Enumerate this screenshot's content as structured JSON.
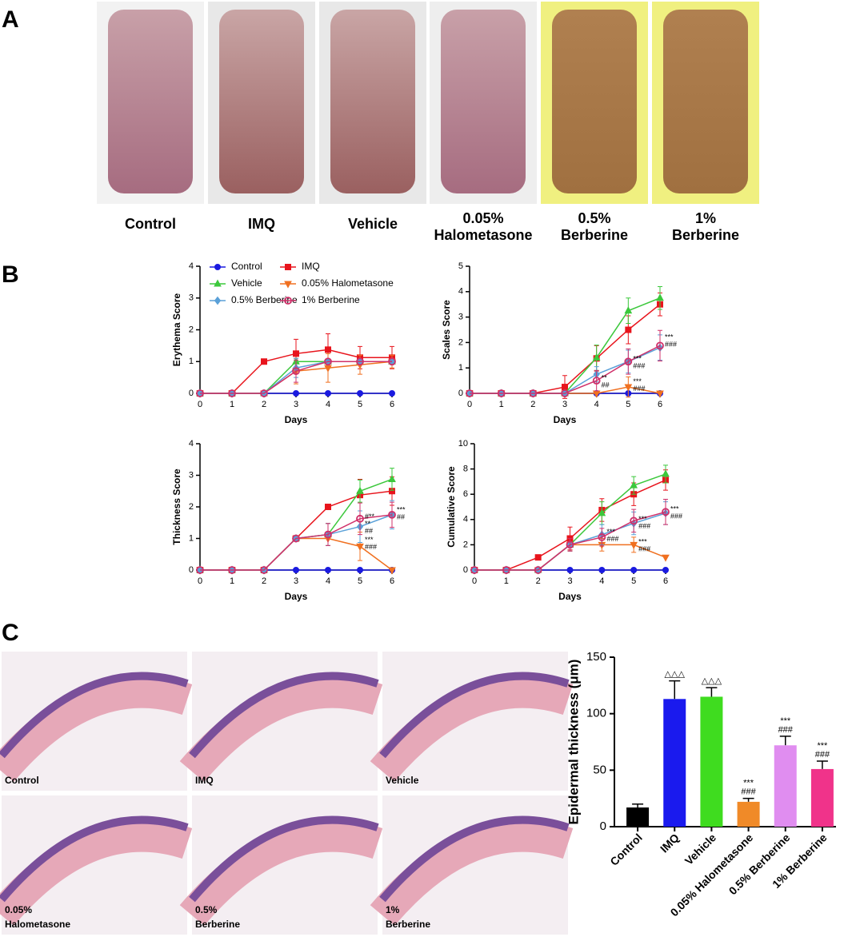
{
  "panel_labels": [
    "A",
    "B",
    "C"
  ],
  "photo_labels": [
    [
      "Control"
    ],
    [
      "IMQ"
    ],
    [
      "Vehicle"
    ],
    [
      "0.05%",
      "Halometasone"
    ],
    [
      "0.5%",
      "Berberine"
    ],
    [
      "1%",
      "Berberine"
    ]
  ],
  "histology_labels": [
    [
      "Control"
    ],
    [
      "IMQ"
    ],
    [
      "Vehicle"
    ],
    [
      "0.05%",
      "Halometasone"
    ],
    [
      "0.5%",
      "Berberine"
    ],
    [
      "1%",
      "Berberine"
    ]
  ],
  "chart_data": [
    {
      "type": "line",
      "ylabel": "Erythema Score",
      "xlabel": "Days",
      "legend": true,
      "x": [
        0,
        1,
        2,
        3,
        4,
        5,
        6
      ],
      "xlim": [
        0,
        6
      ],
      "xticks": [
        0,
        1,
        2,
        3,
        4,
        5,
        6
      ],
      "ylim": [
        0,
        4
      ],
      "yticks": [
        0,
        1,
        2,
        3,
        4
      ],
      "series": [
        {
          "name": "Control",
          "color": "#1a1ae0",
          "marker": "circle",
          "values": [
            0,
            0,
            0,
            0,
            0,
            0,
            0
          ],
          "errors": [
            0,
            0,
            0,
            0,
            0,
            0,
            0
          ]
        },
        {
          "name": "IMQ",
          "color": "#e8141c",
          "marker": "square",
          "values": [
            0,
            0,
            1,
            1.25,
            1.375,
            1.125,
            1.125
          ],
          "errors": [
            0,
            0,
            0,
            0.45,
            0.5,
            0.35,
            0.35
          ]
        },
        {
          "name": "Vehicle",
          "color": "#3cc83c",
          "marker": "triangle",
          "values": [
            0,
            0,
            0,
            1,
            1,
            1,
            1
          ],
          "errors": [
            0,
            0,
            0,
            0,
            0,
            0,
            0
          ]
        },
        {
          "name": "0.05% Halometasone",
          "color": "#f07020",
          "marker": "triangle-down",
          "values": [
            0,
            0,
            0,
            0.7,
            0.8,
            0.9,
            1
          ],
          "errors": [
            0,
            0,
            0,
            0.4,
            0.45,
            0.3,
            0.2
          ]
        },
        {
          "name": "0.5% Berberine",
          "color": "#5aa0d8",
          "marker": "diamond",
          "values": [
            0,
            0,
            0,
            0.8,
            1,
            1,
            1
          ],
          "errors": [
            0,
            0,
            0,
            0.3,
            0,
            0,
            0
          ]
        },
        {
          "name": "1% Berberine",
          "color": "#d0306a",
          "marker": "open-circle",
          "values": [
            0,
            0,
            0,
            0.7,
            1,
            1,
            1
          ],
          "errors": [
            0,
            0,
            0,
            0.35,
            0,
            0,
            0
          ]
        }
      ],
      "annotations": []
    },
    {
      "type": "line",
      "ylabel": "Scales Score",
      "xlabel": "Days",
      "x": [
        0,
        1,
        2,
        3,
        4,
        5,
        6
      ],
      "xlim": [
        0,
        6
      ],
      "xticks": [
        0,
        1,
        2,
        3,
        4,
        5,
        6
      ],
      "ylim": [
        0,
        5
      ],
      "yticks": [
        0,
        1,
        2,
        3,
        4,
        5
      ],
      "series": [
        {
          "color": "#1a1ae0",
          "marker": "circle",
          "values": [
            0,
            0,
            0,
            0,
            0,
            0,
            0
          ],
          "errors": [
            0,
            0,
            0,
            0,
            0,
            0,
            0
          ]
        },
        {
          "color": "#e8141c",
          "marker": "square",
          "values": [
            0,
            0,
            0,
            0.25,
            1.375,
            2.5,
            3.5
          ],
          "errors": [
            0,
            0,
            0,
            0.45,
            0.5,
            0.55,
            0.45
          ]
        },
        {
          "color": "#3cc83c",
          "marker": "triangle",
          "values": [
            0,
            0,
            0,
            0,
            1.4,
            3.25,
            3.75
          ],
          "errors": [
            0,
            0,
            0,
            0,
            0.5,
            0.5,
            0.45
          ]
        },
        {
          "color": "#f07020",
          "marker": "triangle-down",
          "values": [
            0,
            0,
            0,
            0,
            0,
            0.25,
            0
          ],
          "errors": [
            0,
            0,
            0,
            0,
            0,
            0.4,
            0
          ]
        },
        {
          "color": "#5aa0d8",
          "marker": "diamond",
          "values": [
            0,
            0,
            0,
            0,
            0.75,
            1.25,
            1.8
          ],
          "errors": [
            0,
            0,
            0,
            0,
            0.3,
            0.45,
            0.5
          ]
        },
        {
          "color": "#d0306a",
          "marker": "open-circle",
          "values": [
            0,
            0,
            0,
            0,
            0.5,
            1.25,
            1.875
          ],
          "errors": [
            0,
            0,
            0,
            0,
            0.4,
            0.5,
            0.6
          ]
        }
      ],
      "annotations": [
        {
          "x": 4,
          "y": 0.6,
          "text": [
            "**",
            "##"
          ]
        },
        {
          "x": 5,
          "y": 1.35,
          "text": [
            "***",
            "###"
          ]
        },
        {
          "x": 5,
          "y": 0.45,
          "text": [
            "***",
            "###"
          ]
        },
        {
          "x": 6,
          "y": 2.2,
          "text": [
            "***",
            "###"
          ]
        }
      ]
    },
    {
      "type": "line",
      "ylabel": "Thickness Score",
      "xlabel": "Days",
      "x": [
        0,
        1,
        2,
        3,
        4,
        5,
        6
      ],
      "xlim": [
        0,
        6
      ],
      "xticks": [
        0,
        1,
        2,
        3,
        4,
        5,
        6
      ],
      "ylim": [
        0,
        4
      ],
      "yticks": [
        0,
        1,
        2,
        3,
        4
      ],
      "series": [
        {
          "color": "#1a1ae0",
          "marker": "circle",
          "values": [
            0,
            0,
            0,
            0,
            0,
            0,
            0
          ],
          "errors": [
            0,
            0,
            0,
            0,
            0,
            0,
            0
          ]
        },
        {
          "color": "#e8141c",
          "marker": "square",
          "values": [
            0,
            0,
            0,
            1,
            2,
            2.375,
            2.5
          ],
          "errors": [
            0,
            0,
            0,
            0,
            0,
            0.5,
            0.45
          ]
        },
        {
          "color": "#3cc83c",
          "marker": "triangle",
          "values": [
            0,
            0,
            0,
            1,
            1.125,
            2.5,
            2.875
          ],
          "errors": [
            0,
            0,
            0,
            0,
            0.35,
            0.35,
            0.35
          ]
        },
        {
          "color": "#f07020",
          "marker": "triangle-down",
          "values": [
            0,
            0,
            0,
            1,
            1,
            0.75,
            0
          ],
          "errors": [
            0,
            0,
            0,
            0,
            0,
            0.45,
            0
          ]
        },
        {
          "color": "#5aa0d8",
          "marker": "diamond",
          "values": [
            0,
            0,
            0,
            1,
            1.125,
            1.375,
            1.75
          ],
          "errors": [
            0,
            0,
            0,
            0,
            0.35,
            0.5,
            0.45
          ]
        },
        {
          "color": "#d0306a",
          "marker": "open-circle",
          "values": [
            0,
            0,
            0,
            1,
            1.125,
            1.625,
            1.75
          ],
          "errors": [
            0,
            0,
            0,
            0,
            0.35,
            0.5,
            0.4
          ]
        }
      ],
      "annotations": [
        {
          "x": 5,
          "y": 1.68,
          "text": [
            "#**"
          ]
        },
        {
          "x": 5,
          "y": 1.45,
          "text": [
            "**",
            "##"
          ]
        },
        {
          "x": 5,
          "y": 0.95,
          "text": [
            "***",
            "###"
          ]
        },
        {
          "x": 6,
          "y": 1.9,
          "text": [
            "***",
            "##"
          ]
        }
      ]
    },
    {
      "type": "line",
      "ylabel": "Cumulative Score",
      "xlabel": "Days",
      "x": [
        0,
        1,
        2,
        3,
        4,
        5,
        6
      ],
      "xlim": [
        0,
        6
      ],
      "xticks": [
        0,
        1,
        2,
        3,
        4,
        5,
        6
      ],
      "ylim": [
        0,
        10
      ],
      "yticks": [
        0,
        2,
        4,
        6,
        8,
        10
      ],
      "series": [
        {
          "color": "#1a1ae0",
          "marker": "circle",
          "values": [
            0,
            0,
            0,
            0,
            0,
            0,
            0
          ],
          "errors": [
            0,
            0,
            0,
            0,
            0,
            0,
            0
          ]
        },
        {
          "color": "#e8141c",
          "marker": "square",
          "values": [
            0,
            0,
            1,
            2.5,
            4.75,
            6,
            7.125
          ],
          "errors": [
            0,
            0,
            0,
            0.9,
            0.9,
            0.9,
            0.8
          ]
        },
        {
          "color": "#3cc83c",
          "marker": "triangle",
          "values": [
            0,
            0,
            0,
            2,
            4.5,
            6.7,
            7.6
          ],
          "errors": [
            0,
            0,
            0,
            0.5,
            0.9,
            0.7,
            0.7
          ]
        },
        {
          "color": "#f07020",
          "marker": "triangle-down",
          "values": [
            0,
            0,
            0,
            2,
            2,
            2,
            1
          ],
          "errors": [
            0,
            0,
            0,
            0.5,
            0.5,
            0.6,
            0
          ]
        },
        {
          "color": "#5aa0d8",
          "marker": "diamond",
          "values": [
            0,
            0,
            0,
            2,
            2.8,
            3.7,
            4.5
          ],
          "errors": [
            0,
            0,
            0,
            0.5,
            0.8,
            0.9,
            0.9
          ]
        },
        {
          "color": "#d0306a",
          "marker": "open-circle",
          "values": [
            0,
            0,
            0,
            2,
            2.6,
            3.9,
            4.6
          ],
          "errors": [
            0,
            0,
            0,
            0.5,
            0.7,
            0.9,
            1
          ]
        }
      ],
      "annotations": [
        {
          "x": 4,
          "y": 3.0,
          "text": [
            "***",
            "###"
          ]
        },
        {
          "x": 5,
          "y": 4.0,
          "text": [
            "***",
            "###"
          ]
        },
        {
          "x": 5,
          "y": 2.2,
          "text": [
            "***",
            "###"
          ]
        },
        {
          "x": 6,
          "y": 4.8,
          "text": [
            "***",
            "###"
          ]
        }
      ]
    },
    {
      "type": "bar",
      "ylabel": "Epidermal thickness (μm)",
      "categories": [
        "Control",
        "IMQ",
        "Vehicle",
        "0.05% Halometasone",
        "0.5% Berberine",
        "1% Berberine"
      ],
      "values": [
        17,
        113,
        115,
        22,
        72,
        51
      ],
      "errors": [
        3,
        16,
        8,
        3,
        8,
        7
      ],
      "colors": [
        "#000000",
        "#1a1aee",
        "#3fdc1f",
        "#f08a28",
        "#e08df0",
        "#f0338a"
      ],
      "ylim": [
        0,
        150
      ],
      "yticks": [
        0,
        50,
        100,
        150
      ],
      "annotations": [
        {
          "x": 1,
          "text": [
            "△△△"
          ]
        },
        {
          "x": 2,
          "text": [
            "△△△"
          ]
        },
        {
          "x": 3,
          "text": [
            "***",
            "###"
          ]
        },
        {
          "x": 4,
          "text": [
            "***",
            "###"
          ]
        },
        {
          "x": 5,
          "text": [
            "***",
            "###"
          ]
        }
      ]
    }
  ]
}
